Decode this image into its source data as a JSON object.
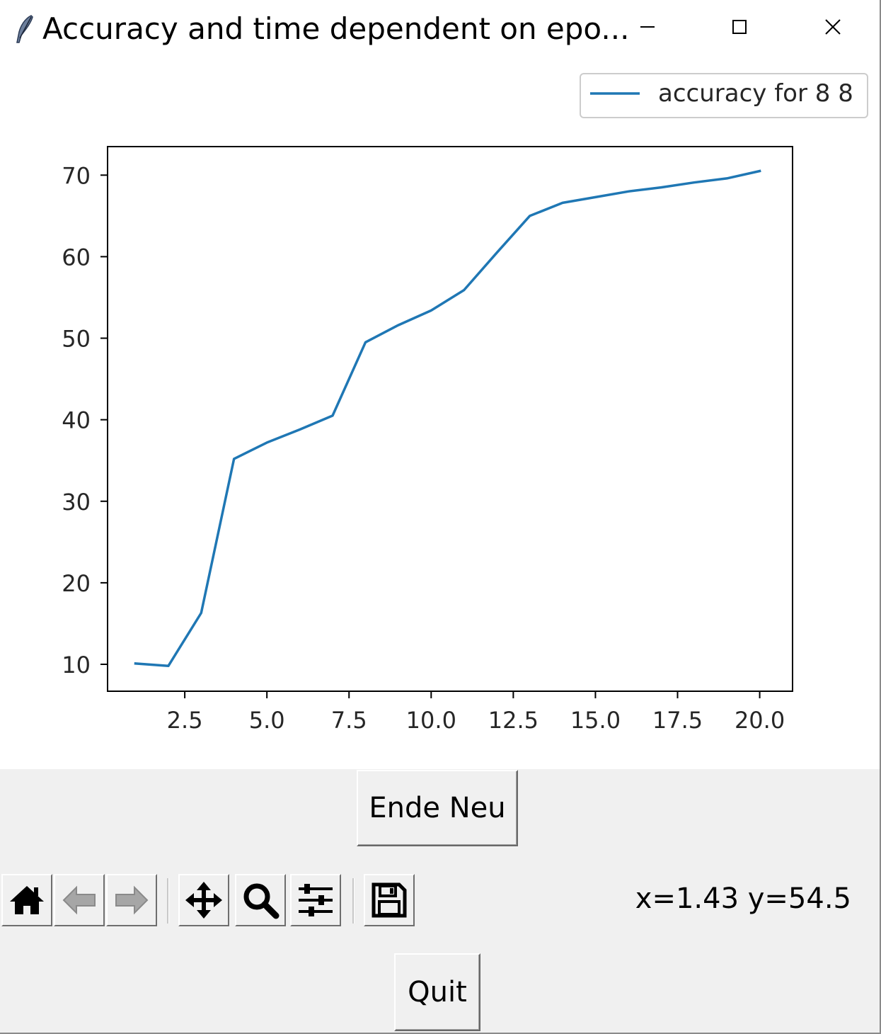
{
  "window": {
    "title": "Accuracy and time dependent on epo...",
    "icon": "feather-icon",
    "controls": [
      "minimize-icon",
      "maximize-icon",
      "close-icon"
    ]
  },
  "chart_data": {
    "type": "line",
    "title": "",
    "xlabel": "",
    "ylabel": "",
    "xlim": [
      0.15,
      21.0
    ],
    "ylim": [
      6.7,
      73.5
    ],
    "xticks": [
      2.5,
      5.0,
      7.5,
      10.0,
      12.5,
      15.0,
      17.5,
      20.0
    ],
    "xtick_labels": [
      "2.5",
      "5.0",
      "7.5",
      "10.0",
      "12.5",
      "15.0",
      "17.5",
      "20.0"
    ],
    "yticks": [
      10,
      20,
      30,
      40,
      50,
      60,
      70
    ],
    "ytick_labels": [
      "10",
      "20",
      "30",
      "40",
      "50",
      "60",
      "70"
    ],
    "grid": false,
    "legend_position": "top-right",
    "series": [
      {
        "name": "accuracy for 8 8",
        "color": "#1f77b4",
        "x": [
          1,
          2,
          3,
          4,
          5,
          6,
          7,
          8,
          9,
          10,
          11,
          12,
          13,
          14,
          15,
          16,
          17,
          18,
          19,
          20
        ],
        "y": [
          10.1,
          9.8,
          16.3,
          35.2,
          37.2,
          38.8,
          40.5,
          49.5,
          51.6,
          53.4,
          55.9,
          60.5,
          65.0,
          66.6,
          67.3,
          68.0,
          68.5,
          69.1,
          69.6,
          70.5
        ]
      }
    ]
  },
  "controls": {
    "ende_neu_label": "Ende Neu",
    "quit_label": "Quit"
  },
  "toolbar": {
    "items": [
      "home-icon",
      "back-icon",
      "forward-icon",
      "pan-icon",
      "zoom-icon",
      "configure-subplots-icon",
      "save-icon"
    ],
    "coords_text": "x=1.43 y=54.5"
  }
}
